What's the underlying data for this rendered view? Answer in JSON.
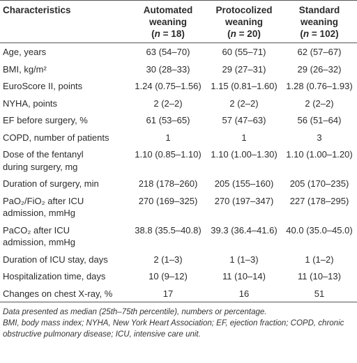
{
  "header": {
    "label": "Characteristics",
    "groups": [
      {
        "lines": [
          "Automated",
          "weaning"
        ],
        "n": [
          "(",
          "n",
          " = 18)"
        ]
      },
      {
        "lines": [
          "Protocolized",
          "weaning"
        ],
        "n": [
          "(",
          "n",
          " = 20)"
        ]
      },
      {
        "lines": [
          "Standard",
          "weaning"
        ],
        "n": [
          "(",
          "n",
          " = 102)"
        ]
      }
    ]
  },
  "rows": [
    [
      [
        "Age, years"
      ],
      "63 (54–70)",
      "60 (55–71)",
      "62 (57–67)"
    ],
    [
      [
        "BMI, kg/m²"
      ],
      "30 (28–33)",
      "29 (27–31)",
      "29 (26–32)"
    ],
    [
      [
        "EuroScore II, points"
      ],
      "1.24 (0.75–1.56)",
      "1.15 (0.81–1.60)",
      "1.28 (0.76–1.93)"
    ],
    [
      [
        "NYHA, points"
      ],
      "2 (2–2)",
      "2 (2–2)",
      "2 (2–2)"
    ],
    [
      [
        "EF before surgery, %"
      ],
      "61 (53–65)",
      "57 (47–63)",
      "56 (51–64)"
    ],
    [
      [
        "COPD, number of patients"
      ],
      "1",
      "1",
      "3"
    ],
    [
      [
        "Dose of the fentanyl",
        "during surgery, mg"
      ],
      "1.10 (0.85–1.10)",
      "1.10 (1.00–1.30)",
      "1.10 (1.00–1.20)"
    ],
    [
      [
        "Duration of surgery, min"
      ],
      "218 (178–260)",
      "205 (155–160)",
      "205 (170–235)"
    ],
    [
      [
        "PaO₂/FiO₂ after ICU",
        "admission, mmHg"
      ],
      "270 (169–325)",
      "270 (197–347)",
      "227 (178–295)"
    ],
    [
      [
        "PaCO₂ after ICU",
        "admission, mmHg"
      ],
      "38.8 (35.5–40.8)",
      "39.3 (36.4–41.6)",
      "40.0 (35.0–45.0)"
    ],
    [
      [
        "Duration of ICU stay, days"
      ],
      "2 (1–3)",
      "1 (1–3)",
      "1 (1–2)"
    ],
    [
      [
        "Hospitalization time, days"
      ],
      "10 (9–12)",
      "11 (10–14)",
      "11 (10–13)"
    ],
    [
      [
        "Changes on chest X-ray, %"
      ],
      "17",
      "16",
      "51"
    ]
  ],
  "notes": [
    "Data presented as median (25th–75th percentile), numbers or percentage.",
    "BMI, body mass index; NYHA, New York Heart Association; EF, ejection fraction; COPD, chronic obstructive pulmonary disease; ICU, intensive care unit."
  ]
}
